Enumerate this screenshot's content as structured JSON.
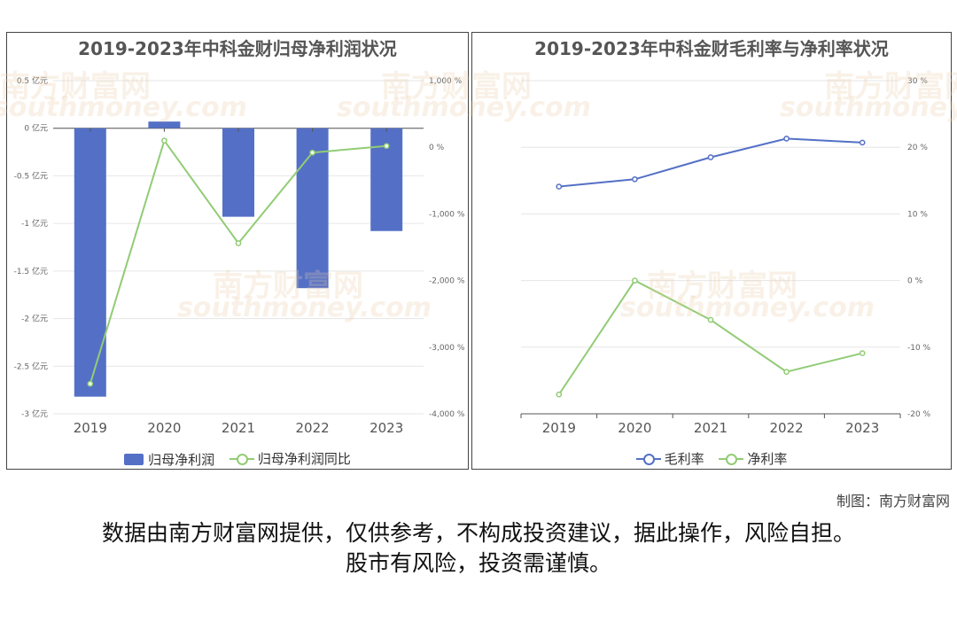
{
  "credit": "制图：南方财富网",
  "disclaimer": {
    "line1": "数据由南方财富网提供，仅供参考，不构成投资建议，据此操作，风险自担。",
    "line2": "股市有风险，投资需谨慎。"
  },
  "watermark": {
    "cn": "南方财富网",
    "en": "southmoney.com"
  },
  "colors": {
    "blue": "#5470c6",
    "green": "#91cc75",
    "axis": "#666666",
    "grid": "#e6e6e6"
  },
  "chart_data": [
    {
      "type": "bar",
      "title": "2019-2023年中科金财归母净利润状况",
      "categories": [
        "2019",
        "2020",
        "2021",
        "2022",
        "2023"
      ],
      "series": [
        {
          "name": "归母净利润",
          "type": "bar",
          "axis": "left",
          "values": [
            -2.82,
            0.07,
            -0.93,
            -1.68,
            -1.08
          ]
        },
        {
          "name": "归母净利润同比",
          "type": "line",
          "axis": "right",
          "values": [
            -3550,
            100,
            -1440,
            -80,
            20
          ]
        }
      ],
      "y_left": {
        "ticks": [
          0.5,
          0,
          -0.5,
          -1,
          -1.5,
          -2,
          -2.5,
          -3
        ],
        "tick_labels": [
          "0.5 亿元",
          "0 亿元",
          "-0.5 亿元",
          "-1 亿元",
          "-1.5 亿元",
          "-2 亿元",
          "-2.5 亿元",
          "-3 亿元"
        ],
        "ylim": [
          -3,
          0.5
        ]
      },
      "y_right": {
        "ticks": [
          1000,
          0,
          -1000,
          -2000,
          -3000,
          -4000
        ],
        "tick_labels": [
          "1,000 %",
          "0 %",
          "-1,000 %",
          "-2,000 %",
          "-3,000 %",
          "-4,000 %"
        ],
        "ylim": [
          -4000,
          1000
        ]
      },
      "legend": [
        "归母净利润",
        "归母净利润同比"
      ],
      "legend_position": "bottom"
    },
    {
      "type": "line",
      "title": "2019-2023年中科金财毛利率与净利率状况",
      "categories": [
        "2019",
        "2020",
        "2021",
        "2022",
        "2023"
      ],
      "series": [
        {
          "name": "毛利率",
          "values": [
            14.1,
            15.2,
            18.5,
            21.3,
            20.7
          ]
        },
        {
          "name": "净利率",
          "values": [
            -17.1,
            0.0,
            -5.9,
            -13.7,
            -10.9
          ]
        }
      ],
      "y_right": {
        "ticks": [
          30,
          20,
          10,
          0,
          -10,
          -20
        ],
        "tick_labels": [
          "30 %",
          "20 %",
          "10 %",
          "0 %",
          "-10 %",
          "-20 %"
        ],
        "ylim": [
          -20,
          30
        ]
      },
      "legend": [
        "毛利率",
        "净利率"
      ],
      "legend_position": "bottom"
    }
  ]
}
